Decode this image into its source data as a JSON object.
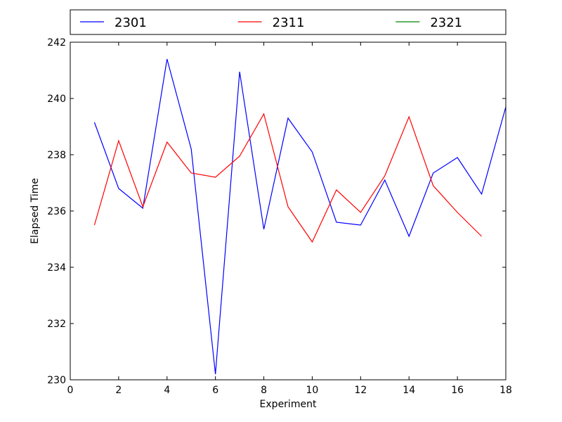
{
  "chart_data": {
    "type": "line",
    "xlabel": "Experiment",
    "ylabel": "Elapsed Time",
    "xlim": [
      0,
      18
    ],
    "ylim": [
      230,
      242
    ],
    "xticks": [
      "0",
      "2",
      "4",
      "6",
      "8",
      "10",
      "12",
      "14",
      "16",
      "18"
    ],
    "yticks": [
      "230",
      "232",
      "234",
      "236",
      "238",
      "240",
      "242"
    ],
    "grid": false,
    "legend_position": "top",
    "series": [
      {
        "name": "2301",
        "color": "#0000ff",
        "x": [
          1,
          2,
          3,
          4,
          5,
          6,
          7,
          8,
          9,
          10,
          11,
          12,
          13,
          14,
          15,
          16,
          17,
          18
        ],
        "y": [
          239.15,
          236.8,
          236.1,
          241.4,
          238.2,
          230.2,
          240.95,
          235.35,
          239.3,
          238.1,
          235.6,
          235.5,
          237.1,
          235.1,
          237.35,
          237.9,
          236.6,
          239.7
        ]
      },
      {
        "name": "2311",
        "color": "#ff0000",
        "x": [
          1,
          2,
          3,
          4,
          5,
          6,
          7,
          8,
          9,
          10,
          11,
          12,
          13,
          14,
          15,
          16,
          17
        ],
        "y": [
          235.5,
          238.5,
          236.15,
          238.45,
          237.35,
          237.2,
          237.95,
          239.45,
          236.15,
          234.9,
          236.75,
          235.95,
          237.25,
          239.35,
          236.9,
          235.95,
          235.1
        ]
      },
      {
        "name": "2321",
        "color": "#008000",
        "x": [],
        "y": []
      }
    ]
  }
}
